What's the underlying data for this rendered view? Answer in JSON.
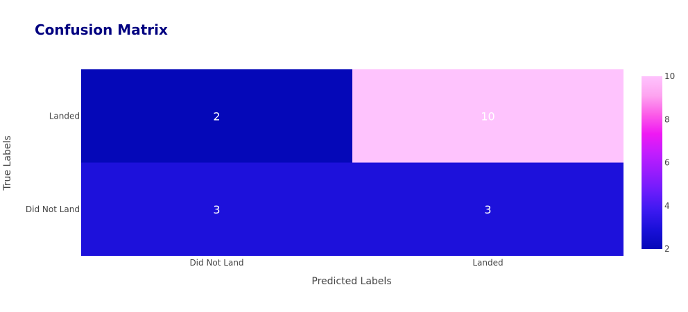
{
  "chart_data": {
    "type": "heatmap",
    "title": "Confusion Matrix",
    "xlabel": "Predicted Labels",
    "ylabel": "True Labels",
    "x_categories": [
      "Did Not Land",
      "Landed"
    ],
    "y_categories": [
      "Did Not Land",
      "Landed"
    ],
    "z": [
      [
        3,
        3
      ],
      [
        2,
        10
      ]
    ],
    "colorscale": [
      "#0508b8",
      "#1910d8",
      "#3c19f0",
      "#6b1cfb",
      "#981cfd",
      "#c21dfe",
      "#ef19f3",
      "#fc5ce8",
      "#fda4f0",
      "#fec3fd"
    ],
    "zmin": 2,
    "zmax": 10,
    "colorbar_ticks": [
      "2",
      "4",
      "6",
      "8",
      "10"
    ],
    "colors": {
      "title": "#000080",
      "axis_text": "#444444",
      "cell_text": "#ffffff"
    }
  }
}
